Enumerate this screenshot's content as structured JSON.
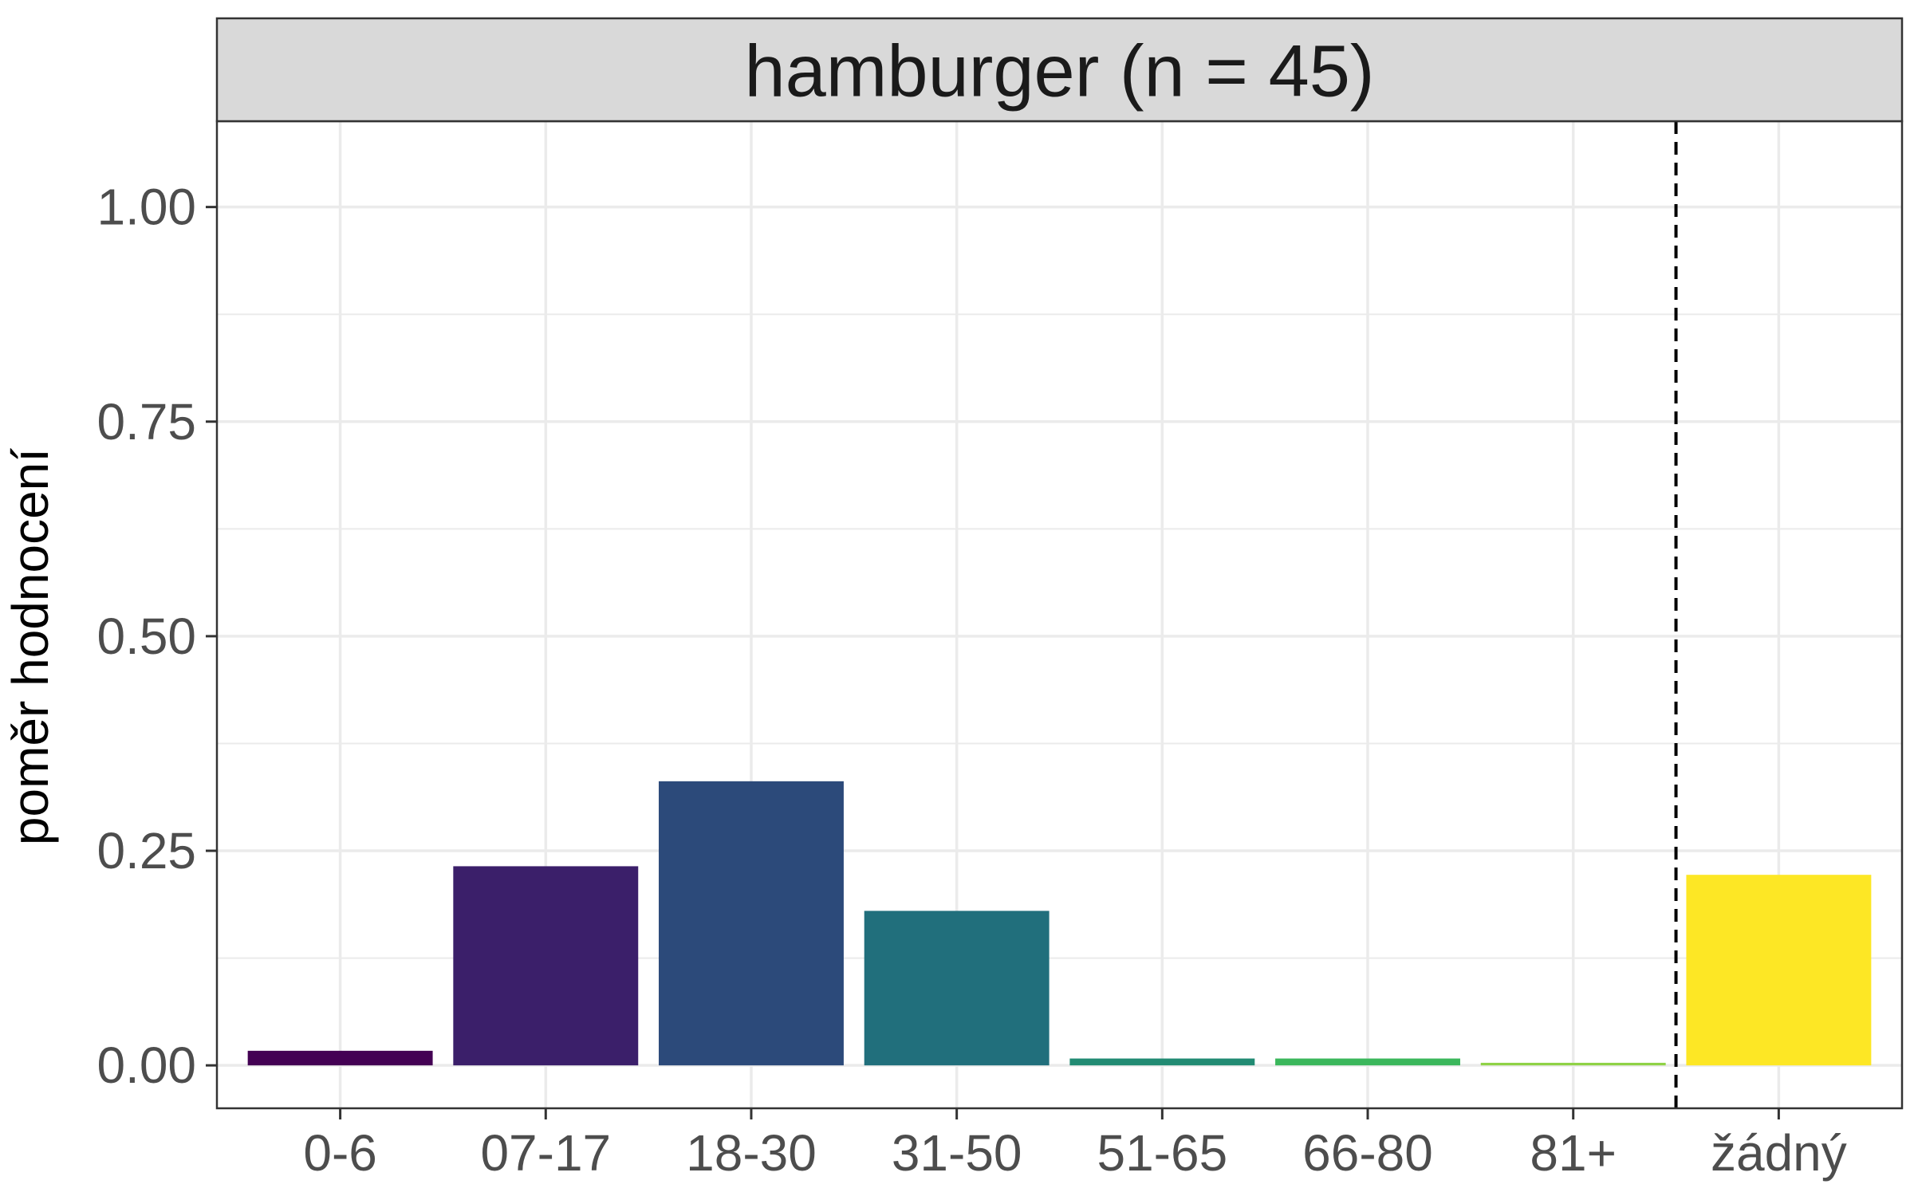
{
  "chart_data": {
    "type": "bar",
    "facet_title": "hamburger (n = 45)",
    "categories": [
      "0-6",
      "07-17",
      "18-30",
      "31-50",
      "51-65",
      "66-80",
      "81+",
      "žádný"
    ],
    "values": [
      0.017,
      0.232,
      0.331,
      0.18,
      0.008,
      0.008,
      0.003,
      0.222
    ],
    "colors": [
      "#440154",
      "#3b1f6a",
      "#2c4a7a",
      "#216f7c",
      "#228b73",
      "#3bb75c",
      "#8fd246",
      "#fde725"
    ],
    "xlabel": "",
    "ylabel": "poměr hodnocení",
    "ylim": [
      -0.05,
      1.1
    ],
    "yticks": [
      0.0,
      0.25,
      0.5,
      0.75,
      1.0
    ],
    "ytick_labels": [
      "0.00",
      "0.25",
      "0.50",
      "0.75",
      "1.00"
    ],
    "reference_line": {
      "style": "dashed",
      "position": "between 81+ and žádný"
    },
    "grid": true,
    "theme": "bw"
  }
}
